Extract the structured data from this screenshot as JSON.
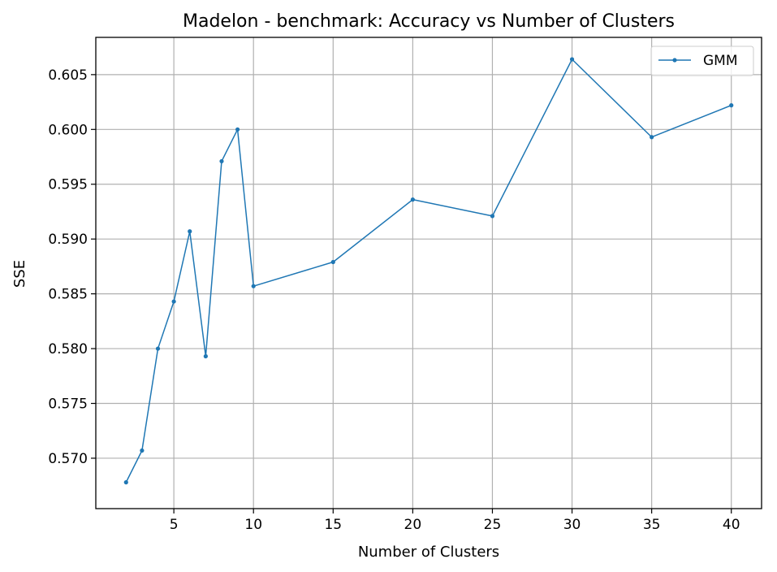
{
  "chart_data": {
    "type": "line",
    "title": "Madelon - benchmark: Accuracy vs Number of Clusters",
    "xlabel": "Number of Clusters",
    "ylabel": "SSE",
    "xlim": [
      0.1,
      41.9
    ],
    "ylim": [
      0.5654,
      0.6084
    ],
    "xticks": [
      5,
      10,
      15,
      20,
      25,
      30,
      35,
      40
    ],
    "yticks": [
      0.57,
      0.575,
      0.58,
      0.585,
      0.59,
      0.595,
      0.6,
      0.605
    ],
    "ytick_labels": [
      "0.570",
      "0.575",
      "0.580",
      "0.585",
      "0.590",
      "0.595",
      "0.600",
      "0.605"
    ],
    "grid": true,
    "legend_position": "top-right",
    "series": [
      {
        "name": "GMM",
        "color": "#1f77b4",
        "marker": "dot",
        "x": [
          2,
          3,
          4,
          5,
          6,
          7,
          8,
          9,
          10,
          15,
          20,
          25,
          30,
          35,
          40
        ],
        "y": [
          0.5678,
          0.5707,
          0.58,
          0.5843,
          0.5907,
          0.5793,
          0.5971,
          0.6,
          0.5857,
          0.5879,
          0.5936,
          0.5921,
          0.6064,
          0.5993,
          0.6022
        ]
      }
    ]
  }
}
